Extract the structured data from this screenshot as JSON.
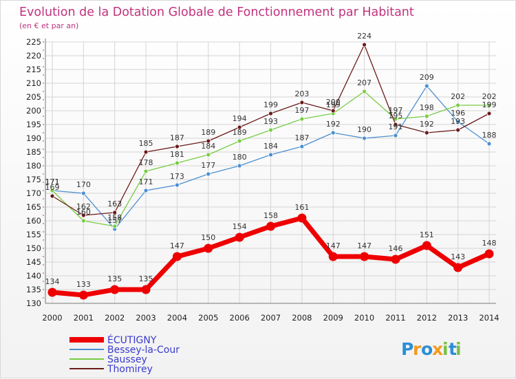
{
  "chart_data": {
    "type": "line",
    "title": "Evolution de la Dotation Globale de Fonctionnement par Habitant",
    "subtitle": "(en € et par an)",
    "x": [
      "2000",
      "2001",
      "2002",
      "2003",
      "2004",
      "2005",
      "2006",
      "2007",
      "2008",
      "2009",
      "2010",
      "2011",
      "2012",
      "2013",
      "2014"
    ],
    "ylim": [
      130,
      225
    ],
    "yticks": [
      130,
      135,
      140,
      145,
      150,
      155,
      160,
      165,
      170,
      175,
      180,
      185,
      190,
      195,
      200,
      205,
      210,
      215,
      220,
      225
    ],
    "grid": true,
    "legend_position": "bottom-left",
    "series": [
      {
        "name": "Bessey-la-Cour",
        "color": "#4a8fd0",
        "values": [
          171,
          170,
          157,
          171,
          173,
          177,
          180,
          184,
          187,
          192,
          190,
          191,
          209,
          196,
          188
        ]
      },
      {
        "name": "Saussey",
        "color": "#77cc44",
        "values": [
          171,
          160,
          158,
          178,
          181,
          184,
          189,
          193,
          197,
          199,
          207,
          197,
          198,
          202,
          202
        ]
      },
      {
        "name": "Thomirey",
        "color": "#6b1a1a",
        "values": [
          169,
          162,
          163,
          185,
          187,
          189,
          194,
          199,
          203,
          200,
          224,
          195,
          192,
          193,
          199
        ]
      },
      {
        "name": "ÉCUTIGNY",
        "color": "#ee0000",
        "values": [
          134,
          133,
          135,
          135,
          147,
          150,
          154,
          158,
          161,
          147,
          147,
          146,
          151,
          143,
          148
        ]
      }
    ]
  },
  "legend": {
    "items": [
      "ÉCUTIGNY",
      "Bessey-la-Cour",
      "Saussey",
      "Thomirey"
    ]
  },
  "logo": {
    "letters": [
      "P",
      "r",
      "o",
      "x",
      "i",
      "t",
      "i"
    ],
    "colors": [
      "#2a8fd6",
      "#f39a1e",
      "#2a8fd6",
      "#f39a1e",
      "#7ac143",
      "#2a8fd6",
      "#7ac143"
    ]
  }
}
